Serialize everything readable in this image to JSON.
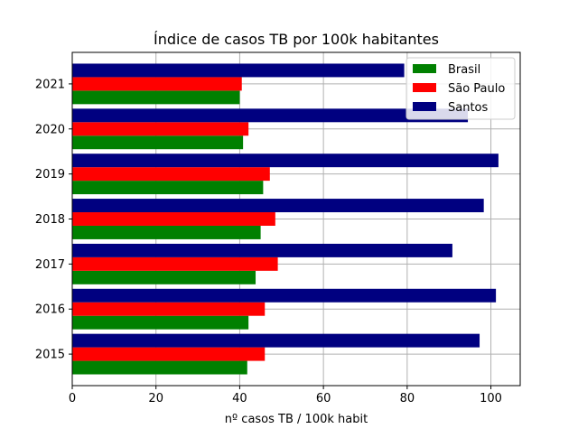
{
  "chart_data": {
    "type": "bar",
    "orientation": "horizontal",
    "title": "Índice de casos TB por 100k habitantes",
    "xlabel": "nº casos TB / 100k habit",
    "ylabel": "",
    "xlim": [
      0,
      107
    ],
    "xticks": [
      "0",
      "20",
      "40",
      "60",
      "80",
      "100"
    ],
    "categories": [
      "2015",
      "2016",
      "2017",
      "2018",
      "2019",
      "2020",
      "2021"
    ],
    "grid": true,
    "legend_position": "top-right",
    "series": [
      {
        "name": "Brasil",
        "color": "#008000",
        "values": [
          41.8,
          42.1,
          43.8,
          45.0,
          45.6,
          40.8,
          40.0
        ]
      },
      {
        "name": "São Paulo",
        "color": "#ff0000",
        "values": [
          46.0,
          46.0,
          49.1,
          48.5,
          47.2,
          42.1,
          40.5
        ]
      },
      {
        "name": "Santos",
        "color": "#000080",
        "values": [
          97.3,
          101.2,
          90.8,
          98.3,
          101.8,
          94.5,
          79.3
        ]
      }
    ]
  }
}
